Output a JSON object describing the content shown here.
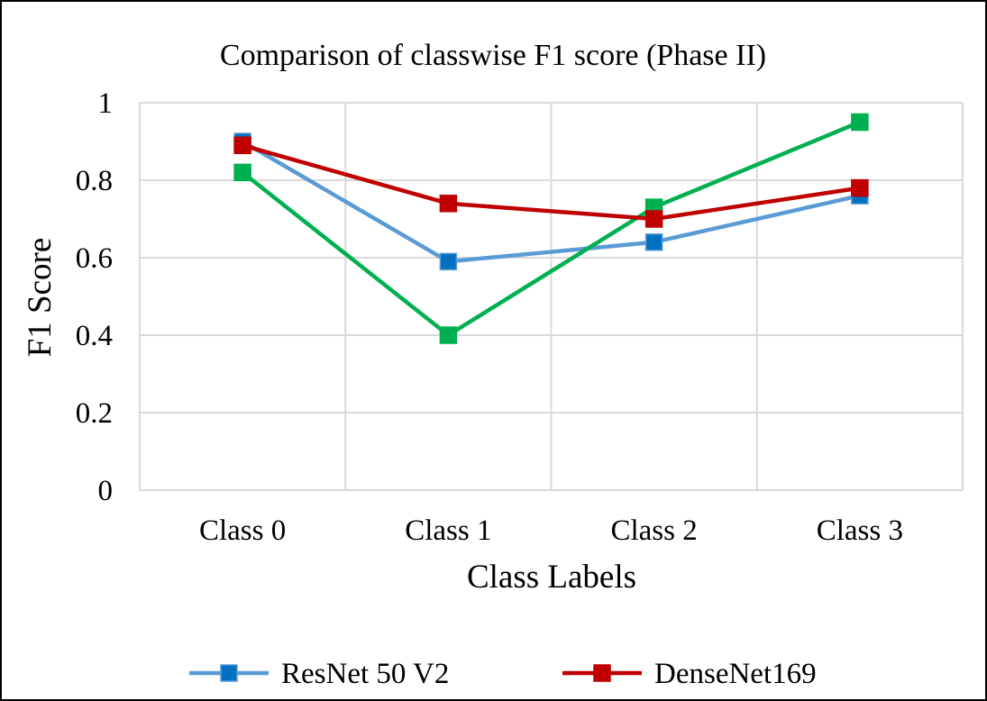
{
  "chart_data": {
    "type": "line",
    "title": "Comparison of classwise F1 score (Phase II)",
    "xlabel": "Class Labels",
    "ylabel": "F1 Score",
    "categories": [
      "Class 0",
      "Class 1",
      "Class 2",
      "Class 3"
    ],
    "ylim": [
      0,
      1
    ],
    "yticks": [
      0,
      0.2,
      0.4,
      0.6,
      0.8,
      1
    ],
    "ytick_labels": [
      "0",
      "0.2",
      "0.4",
      "0.6",
      "0.8",
      "1"
    ],
    "grid": true,
    "legend_position": "bottom",
    "series": [
      {
        "name": "ResNet 50 V2",
        "color": "#5B9BD5",
        "marker_color": "#0070C0",
        "values": [
          0.9,
          0.59,
          0.64,
          0.76
        ],
        "marker": "square"
      },
      {
        "name": "",
        "color": "#00B050",
        "marker_color": "#00B050",
        "values": [
          0.82,
          0.4,
          0.73,
          0.95
        ],
        "marker": "square"
      },
      {
        "name": "DenseNet169",
        "color": "#C00000",
        "marker_color": "#C00000",
        "values": [
          0.89,
          0.74,
          0.7,
          0.78
        ],
        "marker": "square"
      }
    ],
    "legend": [
      {
        "label": "ResNet 50 V2",
        "series_index": 0
      },
      {
        "label": "DenseNet169",
        "series_index": 2
      }
    ]
  }
}
